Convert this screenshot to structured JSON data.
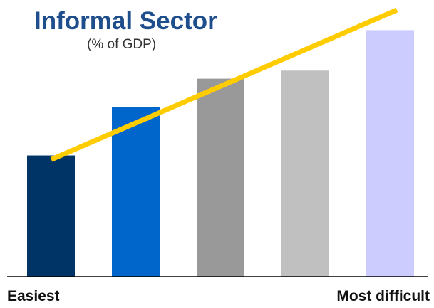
{
  "chart_data": {
    "type": "bar",
    "title": "Informal Sector",
    "subtitle": "(% of GDP)",
    "x_axis_left_label": "Easiest",
    "x_axis_right_label": "Most difficult",
    "categories": [
      "",
      "",
      "",
      "",
      ""
    ],
    "values": [
      30,
      42,
      49,
      51,
      61
    ],
    "bar_colors": [
      "#003366",
      "#0066cc",
      "#999999",
      "#c0c0c0",
      "#ccccff"
    ],
    "trend_line": {
      "start": 29,
      "end": 66,
      "color": "#ffcc00"
    },
    "ylim": [
      0,
      66
    ],
    "grid": false,
    "legend": "none"
  }
}
